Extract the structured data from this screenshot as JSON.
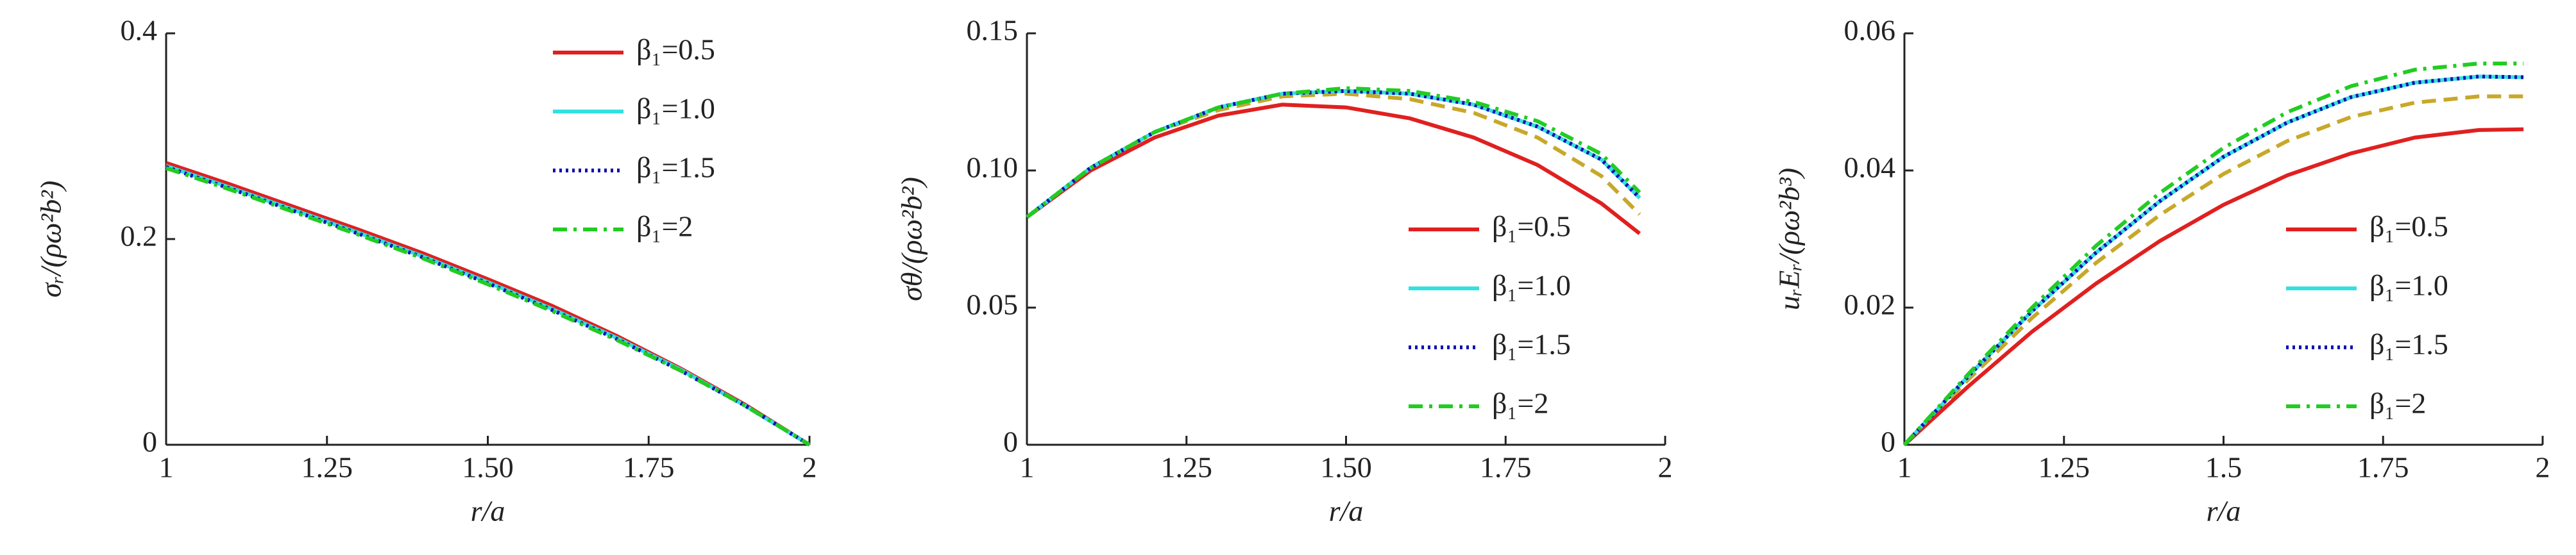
{
  "chart_data": [
    {
      "type": "line",
      "ylabel": "σᵣ/(ρω²b²)",
      "xlabel": "r/a",
      "xlim": [
        1,
        2
      ],
      "ylim": [
        0,
        0.4
      ],
      "xticks": [
        1,
        1.25,
        {
          "value": 1.5,
          "label": "1.50"
        },
        1.75,
        2
      ],
      "yticks": [
        0,
        0.2,
        0.4
      ],
      "legend": "upper right",
      "x": [
        1,
        1.1,
        1.2,
        1.3,
        1.4,
        1.5,
        1.6,
        1.7,
        1.8,
        1.9,
        2
      ],
      "series": [
        {
          "name": "β₁=0.5",
          "color": "#e02020",
          "linestyle": "solid",
          "values": [
            0.274,
            0.253,
            0.231,
            0.209,
            0.186,
            0.161,
            0.135,
            0.106,
            0.074,
            0.039,
            0
          ]
        },
        {
          "name": "β₁=1.0",
          "color": "#33e0e0",
          "linestyle": "solid",
          "values": [
            0.271,
            0.25,
            0.228,
            0.206,
            0.183,
            0.158,
            0.132,
            0.104,
            0.073,
            0.038,
            0
          ]
        },
        {
          "name": "β₁=1.5",
          "color": "#1010b0",
          "linestyle": "dotted",
          "values": [
            0.27,
            0.249,
            0.227,
            0.205,
            0.182,
            0.157,
            0.131,
            0.103,
            0.072,
            0.038,
            0
          ]
        },
        {
          "name": "β₁=2",
          "color": "#22cc22",
          "linestyle": "dashdot",
          "values": [
            0.269,
            0.248,
            0.226,
            0.204,
            0.181,
            0.156,
            0.13,
            0.102,
            0.072,
            0.038,
            0
          ]
        }
      ]
    },
    {
      "type": "line",
      "ylabel": "σθ/(ρω²b²)",
      "xlabel": "r/a",
      "xlim": [
        1,
        2
      ],
      "ylim": [
        0,
        0.15
      ],
      "xticks": [
        1,
        1.25,
        {
          "value": 1.5,
          "label": "1.50"
        },
        1.75,
        2
      ],
      "yticks": [
        0,
        0.05,
        {
          "value": 0.1,
          "label": "0.10"
        },
        0.15
      ],
      "legend": "lower right",
      "x": [
        1,
        1.1,
        1.2,
        1.3,
        1.4,
        1.5,
        1.6,
        1.7,
        1.8,
        1.9,
        1.96
      ],
      "series": [
        {
          "name": "β₁=0.5",
          "color": "#e02020",
          "linestyle": "solid",
          "values": [
            0.083,
            0.1,
            0.112,
            0.12,
            0.124,
            0.123,
            0.119,
            0.112,
            0.102,
            0.088,
            0.077
          ]
        },
        {
          "name": "β₁=1.0",
          "color": "#33e0e0",
          "linestyle": "solid",
          "values": [
            0.083,
            0.101,
            0.114,
            0.123,
            0.128,
            0.129,
            0.128,
            0.124,
            0.116,
            0.104,
            0.09
          ]
        },
        {
          "name": "β₁=1.5",
          "color": "#1010b0",
          "linestyle": "dotted",
          "values": [
            0.083,
            0.101,
            0.114,
            0.123,
            0.128,
            0.129,
            0.128,
            0.124,
            0.116,
            0.104,
            0.09
          ]
        },
        {
          "name": "β₁=2",
          "color": "#22cc22",
          "linestyle": "dashdot",
          "values": [
            0.083,
            0.101,
            0.114,
            0.123,
            0.128,
            0.13,
            0.129,
            0.125,
            0.118,
            0.106,
            0.092
          ]
        },
        {
          "name": null,
          "color": "#c8a82a",
          "linestyle": "dashed",
          "values": [
            0.083,
            0.101,
            0.114,
            0.122,
            0.127,
            0.128,
            0.126,
            0.121,
            0.112,
            0.098,
            0.084
          ]
        }
      ]
    },
    {
      "type": "line",
      "ylabel": "uᵣEᵣ/(ρω²b³)",
      "xlabel": "r/a",
      "xlim": [
        1,
        2
      ],
      "ylim": [
        0,
        0.06
      ],
      "xticks": [
        1,
        1.25,
        1.5,
        1.75,
        2
      ],
      "yticks": [
        0,
        0.02,
        0.04,
        0.06
      ],
      "legend": "lower right",
      "x": [
        1,
        1.1,
        1.2,
        1.3,
        1.4,
        1.5,
        1.6,
        1.7,
        1.8,
        1.9,
        1.97
      ],
      "series": [
        {
          "name": "β₁=0.5",
          "color": "#e02020",
          "linestyle": "solid",
          "values": [
            0,
            0.0085,
            0.0165,
            0.0235,
            0.0297,
            0.035,
            0.0393,
            0.0425,
            0.0448,
            0.0459,
            0.046
          ]
        },
        {
          "name": "β₁=1.0",
          "color": "#33e0e0",
          "linestyle": "solid",
          "values": [
            0,
            0.01,
            0.0195,
            0.028,
            0.0355,
            0.042,
            0.047,
            0.0507,
            0.0528,
            0.0537,
            0.0536
          ]
        },
        {
          "name": "β₁=1.5",
          "color": "#1010b0",
          "linestyle": "dotted",
          "values": [
            0,
            0.01,
            0.0195,
            0.028,
            0.0355,
            0.042,
            0.047,
            0.0507,
            0.0528,
            0.0537,
            0.0536
          ]
        },
        {
          "name": "β₁=2",
          "color": "#22cc22",
          "linestyle": "dashdot",
          "values": [
            0,
            0.0103,
            0.02,
            0.029,
            0.0367,
            0.0433,
            0.0485,
            0.0523,
            0.0547,
            0.0556,
            0.0556
          ]
        },
        {
          "name": null,
          "color": "#c8a82a",
          "linestyle": "dashed",
          "values": [
            0,
            0.0095,
            0.0185,
            0.0265,
            0.0335,
            0.0395,
            0.0443,
            0.0478,
            0.0499,
            0.0508,
            0.0508
          ]
        }
      ]
    }
  ]
}
